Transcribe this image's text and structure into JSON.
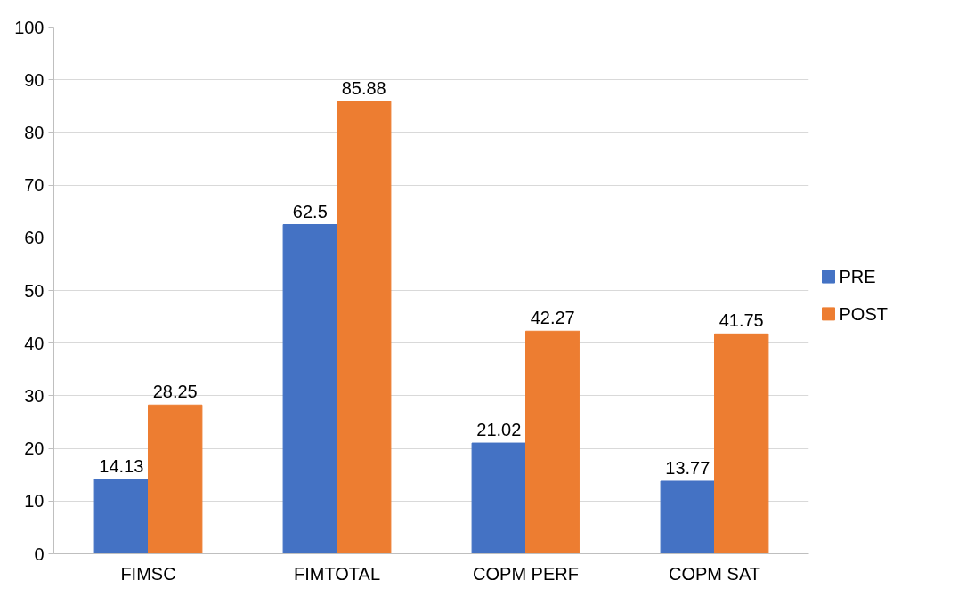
{
  "chart_data": {
    "type": "bar",
    "categories": [
      "FIMSC",
      "FIMTOTAL",
      "COPM PERF",
      "COPM SAT"
    ],
    "series": [
      {
        "name": "PRE",
        "color": "#4472c4",
        "values": [
          14.13,
          62.5,
          21.02,
          13.77
        ]
      },
      {
        "name": "POST",
        "color": "#ed7d31",
        "values": [
          28.25,
          85.88,
          42.27,
          41.75
        ]
      }
    ],
    "ylim": [
      0,
      100
    ],
    "yticks": [
      0,
      10,
      20,
      30,
      40,
      50,
      60,
      70,
      80,
      90,
      100
    ],
    "grid": "y",
    "legend": "right",
    "data_labels": true
  }
}
